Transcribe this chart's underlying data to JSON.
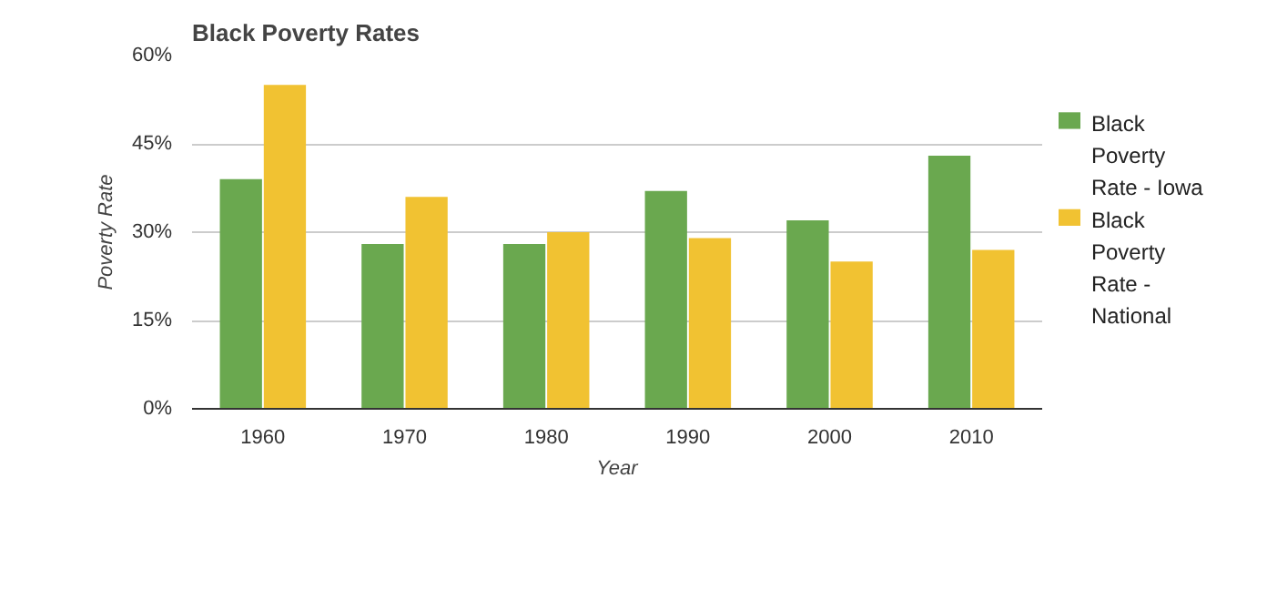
{
  "chart_data": {
    "type": "bar",
    "title": "Black Poverty Rates",
    "xlabel": "Year",
    "ylabel": "Poverty Rate",
    "categories": [
      "1960",
      "1970",
      "1980",
      "1990",
      "2000",
      "2010"
    ],
    "series": [
      {
        "name": "Black Poverty Rate - Iowa",
        "color": "#6aa84f",
        "values": [
          39,
          28,
          28,
          37,
          32,
          43
        ]
      },
      {
        "name": "Black Poverty Rate - National",
        "color": "#f1c232",
        "values": [
          55,
          36,
          30,
          29,
          25,
          27
        ]
      }
    ],
    "ylim": [
      0,
      60
    ],
    "yticks": [
      {
        "value": 0,
        "label": "0%"
      },
      {
        "value": 15,
        "label": "15%"
      },
      {
        "value": 30,
        "label": "30%"
      },
      {
        "value": 45,
        "label": "45%"
      },
      {
        "value": 60,
        "label": "60%"
      }
    ],
    "grid": "y",
    "legend": "right"
  }
}
